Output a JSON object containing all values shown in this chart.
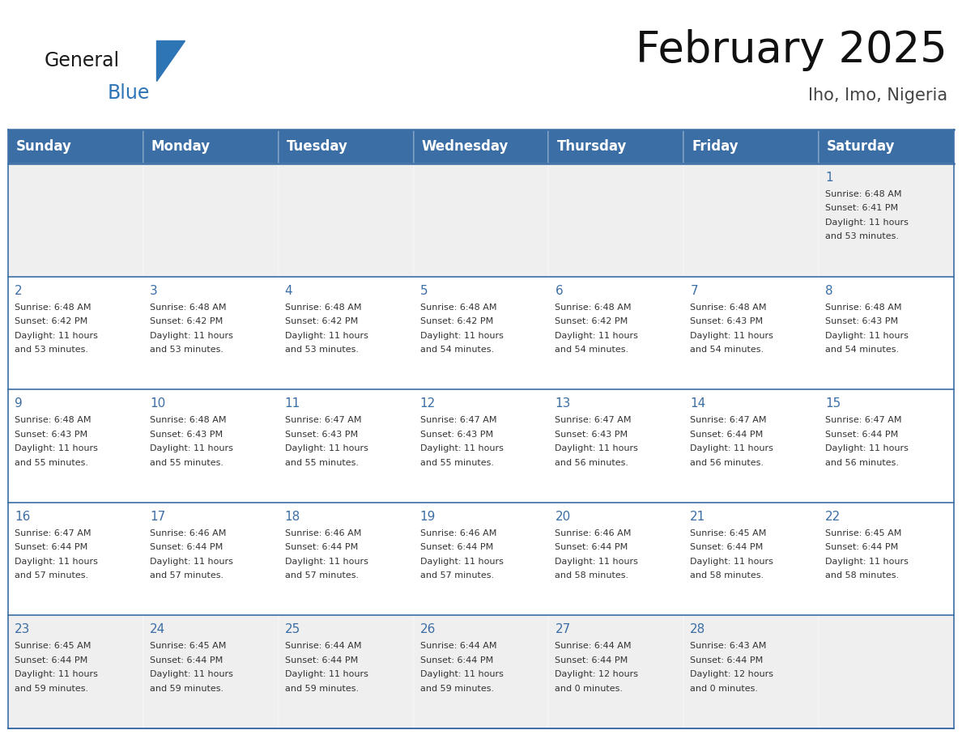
{
  "title": "February 2025",
  "subtitle": "Iho, Imo, Nigeria",
  "days_of_week": [
    "Sunday",
    "Monday",
    "Tuesday",
    "Wednesday",
    "Thursday",
    "Friday",
    "Saturday"
  ],
  "header_bg": "#3B6EA5",
  "header_text": "#FFFFFF",
  "bg_color": "#FFFFFF",
  "first_row_bg": "#EFEFEF",
  "other_row_bg": "#FFFFFF",
  "day_number_color": "#3B6EA5",
  "text_color": "#333333",
  "border_color": "#3B6EA5",
  "calendar_data": [
    [
      null,
      null,
      null,
      null,
      null,
      null,
      {
        "day": "1",
        "sunrise": "6:48 AM",
        "sunset": "6:41 PM",
        "daylight": "11 hours\nand 53 minutes."
      }
    ],
    [
      {
        "day": "2",
        "sunrise": "6:48 AM",
        "sunset": "6:42 PM",
        "daylight": "11 hours\nand 53 minutes."
      },
      {
        "day": "3",
        "sunrise": "6:48 AM",
        "sunset": "6:42 PM",
        "daylight": "11 hours\nand 53 minutes."
      },
      {
        "day": "4",
        "sunrise": "6:48 AM",
        "sunset": "6:42 PM",
        "daylight": "11 hours\nand 53 minutes."
      },
      {
        "day": "5",
        "sunrise": "6:48 AM",
        "sunset": "6:42 PM",
        "daylight": "11 hours\nand 54 minutes."
      },
      {
        "day": "6",
        "sunrise": "6:48 AM",
        "sunset": "6:42 PM",
        "daylight": "11 hours\nand 54 minutes."
      },
      {
        "day": "7",
        "sunrise": "6:48 AM",
        "sunset": "6:43 PM",
        "daylight": "11 hours\nand 54 minutes."
      },
      {
        "day": "8",
        "sunrise": "6:48 AM",
        "sunset": "6:43 PM",
        "daylight": "11 hours\nand 54 minutes."
      }
    ],
    [
      {
        "day": "9",
        "sunrise": "6:48 AM",
        "sunset": "6:43 PM",
        "daylight": "11 hours\nand 55 minutes."
      },
      {
        "day": "10",
        "sunrise": "6:48 AM",
        "sunset": "6:43 PM",
        "daylight": "11 hours\nand 55 minutes."
      },
      {
        "day": "11",
        "sunrise": "6:47 AM",
        "sunset": "6:43 PM",
        "daylight": "11 hours\nand 55 minutes."
      },
      {
        "day": "12",
        "sunrise": "6:47 AM",
        "sunset": "6:43 PM",
        "daylight": "11 hours\nand 55 minutes."
      },
      {
        "day": "13",
        "sunrise": "6:47 AM",
        "sunset": "6:43 PM",
        "daylight": "11 hours\nand 56 minutes."
      },
      {
        "day": "14",
        "sunrise": "6:47 AM",
        "sunset": "6:44 PM",
        "daylight": "11 hours\nand 56 minutes."
      },
      {
        "day": "15",
        "sunrise": "6:47 AM",
        "sunset": "6:44 PM",
        "daylight": "11 hours\nand 56 minutes."
      }
    ],
    [
      {
        "day": "16",
        "sunrise": "6:47 AM",
        "sunset": "6:44 PM",
        "daylight": "11 hours\nand 57 minutes."
      },
      {
        "day": "17",
        "sunrise": "6:46 AM",
        "sunset": "6:44 PM",
        "daylight": "11 hours\nand 57 minutes."
      },
      {
        "day": "18",
        "sunrise": "6:46 AM",
        "sunset": "6:44 PM",
        "daylight": "11 hours\nand 57 minutes."
      },
      {
        "day": "19",
        "sunrise": "6:46 AM",
        "sunset": "6:44 PM",
        "daylight": "11 hours\nand 57 minutes."
      },
      {
        "day": "20",
        "sunrise": "6:46 AM",
        "sunset": "6:44 PM",
        "daylight": "11 hours\nand 58 minutes."
      },
      {
        "day": "21",
        "sunrise": "6:45 AM",
        "sunset": "6:44 PM",
        "daylight": "11 hours\nand 58 minutes."
      },
      {
        "day": "22",
        "sunrise": "6:45 AM",
        "sunset": "6:44 PM",
        "daylight": "11 hours\nand 58 minutes."
      }
    ],
    [
      {
        "day": "23",
        "sunrise": "6:45 AM",
        "sunset": "6:44 PM",
        "daylight": "11 hours\nand 59 minutes."
      },
      {
        "day": "24",
        "sunrise": "6:45 AM",
        "sunset": "6:44 PM",
        "daylight": "11 hours\nand 59 minutes."
      },
      {
        "day": "25",
        "sunrise": "6:44 AM",
        "sunset": "6:44 PM",
        "daylight": "11 hours\nand 59 minutes."
      },
      {
        "day": "26",
        "sunrise": "6:44 AM",
        "sunset": "6:44 PM",
        "daylight": "11 hours\nand 59 minutes."
      },
      {
        "day": "27",
        "sunrise": "6:44 AM",
        "sunset": "6:44 PM",
        "daylight": "12 hours\nand 0 minutes."
      },
      {
        "day": "28",
        "sunrise": "6:43 AM",
        "sunset": "6:44 PM",
        "daylight": "12 hours\nand 0 minutes."
      },
      null
    ]
  ],
  "logo_text_general": "General",
  "logo_text_blue": "Blue",
  "logo_triangle_color": "#2E75B6",
  "title_fontsize": 38,
  "subtitle_fontsize": 15,
  "header_fontsize": 12,
  "day_num_fontsize": 11,
  "cell_text_fontsize": 8.0
}
